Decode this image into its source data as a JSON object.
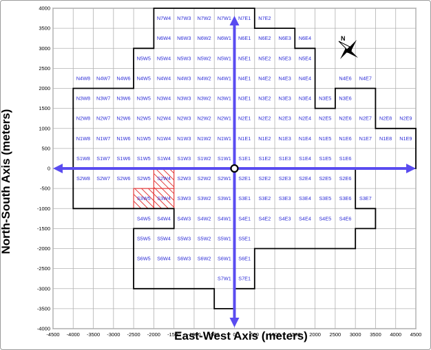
{
  "axes": {
    "x_label": "East-West Axis (meters)",
    "y_label": "North-South Axis (meters)",
    "x_ticks": [
      "-4500",
      "-4000",
      "-3500",
      "-3000",
      "-2500",
      "-2000",
      "-1500",
      "-1000",
      "-500",
      "0",
      "500",
      "1000",
      "1500",
      "2000",
      "2500",
      "3000",
      "3500",
      "4000",
      "4500"
    ],
    "y_ticks": [
      "4000",
      "3500",
      "3000",
      "2500",
      "2000",
      "1500",
      "1000",
      "500",
      "0",
      "-500",
      "-1000",
      "-1500",
      "-2000",
      "-2500",
      "-3000",
      "-3500",
      "-4000"
    ],
    "x_range": [
      -4500,
      4500
    ],
    "y_range": [
      -4000,
      4000
    ],
    "grid_step": 500
  },
  "compass": {
    "label": "N"
  },
  "colors": {
    "cell_label": "#2b2bd6",
    "arrow": "#5a4cf0",
    "hatch": "#e23a3a",
    "outline": "#000000",
    "grid": "#b0b0b0"
  },
  "grid_rows": [
    {
      "y": 3500,
      "cells": [
        [
          -2000,
          "N7W4"
        ],
        [
          -1500,
          "N7W3"
        ],
        [
          -1000,
          "N7W2"
        ],
        [
          -500,
          "N7W1"
        ],
        [
          0,
          "N7E1"
        ],
        [
          500,
          "N7E2"
        ]
      ]
    },
    {
      "y": 3000,
      "cells": [
        [
          -2000,
          "N6W4"
        ],
        [
          -1500,
          "N6W3"
        ],
        [
          -1000,
          "N6W2"
        ],
        [
          -500,
          "N6W1"
        ],
        [
          0,
          "N6E1"
        ],
        [
          500,
          "N6E2"
        ],
        [
          1000,
          "N6E3"
        ],
        [
          1500,
          "N6E4"
        ]
      ]
    },
    {
      "y": 2500,
      "cells": [
        [
          -2500,
          "N5W5"
        ],
        [
          -2000,
          "N5W4"
        ],
        [
          -1500,
          "N5W3"
        ],
        [
          -1000,
          "N5W2"
        ],
        [
          -500,
          "N5W1"
        ],
        [
          0,
          "N5E1"
        ],
        [
          500,
          "N5E2"
        ],
        [
          1000,
          "N5E3"
        ],
        [
          1500,
          "N5E4"
        ]
      ]
    },
    {
      "y": 2000,
      "cells": [
        [
          -4000,
          "N4W8"
        ],
        [
          -3500,
          "N4W7"
        ],
        [
          -3000,
          "N4W6"
        ],
        [
          -2500,
          "N4W5"
        ],
        [
          -2000,
          "N4W4"
        ],
        [
          -1500,
          "N4W3"
        ],
        [
          -1000,
          "N4W2"
        ],
        [
          -500,
          "N4W1"
        ],
        [
          0,
          "N4E1"
        ],
        [
          500,
          "N4E2"
        ],
        [
          1000,
          "N4E3"
        ],
        [
          1500,
          "N4E4"
        ],
        [
          2500,
          "N4E6"
        ],
        [
          3000,
          "N4E7"
        ]
      ]
    },
    {
      "y": 1500,
      "cells": [
        [
          -4000,
          "N3W8"
        ],
        [
          -3500,
          "N3W7"
        ],
        [
          -3000,
          "N3W6"
        ],
        [
          -2500,
          "N3W5"
        ],
        [
          -2000,
          "N3W4"
        ],
        [
          -1500,
          "N3W3"
        ],
        [
          -1000,
          "N3W2"
        ],
        [
          -500,
          "N3W1"
        ],
        [
          0,
          "N3E1"
        ],
        [
          500,
          "N3E2"
        ],
        [
          1000,
          "N3E3"
        ],
        [
          1500,
          "N3E4"
        ],
        [
          2000,
          "N3E5"
        ],
        [
          2500,
          "N3E6"
        ]
      ]
    },
    {
      "y": 1000,
      "cells": [
        [
          -4000,
          "N2W8"
        ],
        [
          -3500,
          "N2W7"
        ],
        [
          -3000,
          "N2W6"
        ],
        [
          -2500,
          "N2W5"
        ],
        [
          -2000,
          "N2W4"
        ],
        [
          -1500,
          "N2W3"
        ],
        [
          -1000,
          "N2W2"
        ],
        [
          -500,
          "N2W1"
        ],
        [
          0,
          "N2E1"
        ],
        [
          500,
          "N2E2"
        ],
        [
          1000,
          "N2E3"
        ],
        [
          1500,
          "N2E4"
        ],
        [
          2000,
          "N2E5"
        ],
        [
          2500,
          "N2E6"
        ],
        [
          3000,
          "N2E7"
        ],
        [
          3500,
          "N2E8"
        ],
        [
          4000,
          "N2E9"
        ]
      ]
    },
    {
      "y": 500,
      "cells": [
        [
          -4000,
          "N1W8"
        ],
        [
          -3500,
          "N1W7"
        ],
        [
          -3000,
          "N1W6"
        ],
        [
          -2500,
          "N1W5"
        ],
        [
          -2000,
          "N1W4"
        ],
        [
          -1500,
          "N1W3"
        ],
        [
          -1000,
          "N1W2"
        ],
        [
          -500,
          "N1W1"
        ],
        [
          0,
          "N1E1"
        ],
        [
          500,
          "N1E2"
        ],
        [
          1000,
          "N1E3"
        ],
        [
          1500,
          "N1E4"
        ],
        [
          2000,
          "N1E5"
        ],
        [
          2500,
          "N1E6"
        ],
        [
          3000,
          "N1E7"
        ],
        [
          3500,
          "N1E8"
        ],
        [
          4000,
          "N1E9"
        ]
      ]
    },
    {
      "y": 0,
      "cells": [
        [
          -4000,
          "S1W8"
        ],
        [
          -3500,
          "S1W7"
        ],
        [
          -3000,
          "S1W6"
        ],
        [
          -2500,
          "S1W5"
        ],
        [
          -2000,
          "S1W4"
        ],
        [
          -1500,
          "S1W3"
        ],
        [
          -1000,
          "S1W2"
        ],
        [
          -500,
          "S1W1"
        ],
        [
          0,
          "S1E1"
        ],
        [
          500,
          "S1E2"
        ],
        [
          1000,
          "S1E3"
        ],
        [
          1500,
          "S1E4"
        ],
        [
          2000,
          "S1E5"
        ],
        [
          2500,
          "S1E6"
        ]
      ]
    },
    {
      "y": -500,
      "cells": [
        [
          -4000,
          "S2W8"
        ],
        [
          -3500,
          "S2W7"
        ],
        [
          -3000,
          "S2W6"
        ],
        [
          -2500,
          "S2W5"
        ],
        [
          -2000,
          "S2W4"
        ],
        [
          -1500,
          "S2W3"
        ],
        [
          -1000,
          "S2W2"
        ],
        [
          -500,
          "S2W1"
        ],
        [
          0,
          "S2E1"
        ],
        [
          500,
          "S2E2"
        ],
        [
          1000,
          "S2E3"
        ],
        [
          1500,
          "S2E4"
        ],
        [
          2000,
          "S2E5"
        ],
        [
          2500,
          "S2E6"
        ]
      ]
    },
    {
      "y": -1000,
      "cells": [
        [
          -2500,
          "S3W5"
        ],
        [
          -2000,
          "S3W4"
        ],
        [
          -1500,
          "S3W3"
        ],
        [
          -1000,
          "S3W2"
        ],
        [
          -500,
          "S3W1"
        ],
        [
          0,
          "S3E1"
        ],
        [
          500,
          "S3E2"
        ],
        [
          1000,
          "S3E3"
        ],
        [
          1500,
          "S3E4"
        ],
        [
          2000,
          "S3E5"
        ],
        [
          2500,
          "S3E6"
        ],
        [
          3000,
          "S3E7"
        ]
      ]
    },
    {
      "y": -1500,
      "cells": [
        [
          -2500,
          "S4W5"
        ],
        [
          -2000,
          "S4W4"
        ],
        [
          -1500,
          "S4W3"
        ],
        [
          -1000,
          "S4W2"
        ],
        [
          -500,
          "S4W1"
        ],
        [
          0,
          "S4E1"
        ],
        [
          500,
          "S4E2"
        ],
        [
          1000,
          "S4E3"
        ],
        [
          1500,
          "S4E4"
        ],
        [
          2000,
          "S4E5"
        ],
        [
          2500,
          "S4E6"
        ]
      ]
    },
    {
      "y": -2000,
      "cells": [
        [
          -2500,
          "S5W5"
        ],
        [
          -2000,
          "S5W4"
        ],
        [
          -1500,
          "S5W3"
        ],
        [
          -1000,
          "S5W2"
        ],
        [
          -500,
          "S5W1"
        ],
        [
          0,
          "S5E1"
        ]
      ]
    },
    {
      "y": -2500,
      "cells": [
        [
          -2500,
          "S6W5"
        ],
        [
          -2000,
          "S6W4"
        ],
        [
          -1500,
          "S6W3"
        ],
        [
          -1000,
          "S6W2"
        ],
        [
          -500,
          "S6W1"
        ],
        [
          0,
          "S6E1"
        ]
      ]
    },
    {
      "y": -3000,
      "cells": [
        [
          -500,
          "S7W1"
        ],
        [
          0,
          "S7E1"
        ]
      ]
    }
  ],
  "hatched_cells": [
    "S2W4",
    "S3W5",
    "S3W4"
  ],
  "boundary": [
    [
      -2000,
      4000
    ],
    [
      500,
      4000
    ],
    [
      500,
      3500
    ],
    [
      1500,
      3500
    ],
    [
      1500,
      3000
    ],
    [
      2000,
      3000
    ],
    [
      2000,
      1500
    ],
    [
      2500,
      1500
    ],
    [
      2500,
      2000
    ],
    [
      3500,
      2000
    ],
    [
      3500,
      1000
    ],
    [
      4500,
      1000
    ],
    [
      4500,
      0
    ],
    [
      3000,
      0
    ],
    [
      3000,
      -1000
    ],
    [
      3500,
      -1000
    ],
    [
      3500,
      -1500
    ],
    [
      3000,
      -1500
    ],
    [
      3000,
      -2000
    ],
    [
      500,
      -2000
    ],
    [
      500,
      -3000
    ],
    [
      0,
      -3000
    ],
    [
      0,
      -3500
    ],
    [
      -500,
      -3500
    ],
    [
      -500,
      -3000
    ],
    [
      -2500,
      -3000
    ],
    [
      -2500,
      -1500
    ],
    [
      -1500,
      -1500
    ],
    [
      -1500,
      -1000
    ],
    [
      -4000,
      -1000
    ],
    [
      -4000,
      2000
    ],
    [
      -2500,
      2000
    ],
    [
      -2500,
      3000
    ],
    [
      -2000,
      3000
    ],
    [
      -2000,
      4000
    ]
  ]
}
